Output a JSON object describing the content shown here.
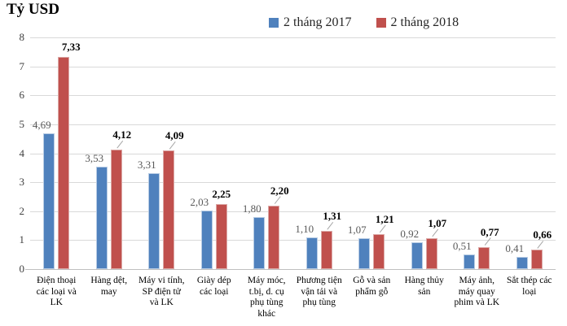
{
  "chart_data": {
    "type": "bar",
    "title": "Tỷ USD",
    "xlabel": "",
    "ylabel": "Tỷ USD",
    "ylim": [
      0,
      8
    ],
    "yticks": [
      0,
      1,
      2,
      3,
      4,
      5,
      6,
      7,
      8
    ],
    "grid": "horizontal",
    "legend_position": "top-center",
    "decimal_separator": ",",
    "categories": [
      "Điện thoại các loại và LK",
      "Hàng dệt, may",
      "Máy vi tính, SP điện tử và LK",
      "Giày dép các loại",
      "Máy móc, t.bị, d. cụ phụ tùng khác",
      "Phương tiện vận tải và phụ tùng",
      "Gỗ và sản phẩm gỗ",
      "Hàng thủy sản",
      "Máy ảnh, máy quay phim và LK",
      "Sắt thép các loại"
    ],
    "category_lines": [
      [
        "Điện thoại",
        "các loại và",
        "LK"
      ],
      [
        "Hàng dệt,",
        "may"
      ],
      [
        "Máy vi tính,",
        "SP điện tử",
        "và LK"
      ],
      [
        "Giày dép",
        "các loại"
      ],
      [
        "Máy móc,",
        "t.bị, d. cụ",
        "phụ tùng",
        "khác"
      ],
      [
        "Phương tiện",
        "vận tải và",
        "phụ tùng"
      ],
      [
        "Gỗ và sản",
        "phẩm gỗ"
      ],
      [
        "Hàng thủy",
        "sản"
      ],
      [
        "Máy ảnh,",
        "máy quay",
        "phim và LK"
      ],
      [
        "Sắt thép các",
        "loại"
      ]
    ],
    "series": [
      {
        "name": "2 tháng 2017",
        "color": "#4F81BD",
        "values": [
          4.69,
          3.53,
          3.31,
          2.03,
          1.8,
          1.1,
          1.07,
          0.92,
          0.51,
          0.41
        ],
        "labels": [
          "4,69",
          "3,53",
          "3,31",
          "2,03",
          "1,80",
          "1,10",
          "1,07",
          "0,92",
          "0,51",
          "0,41"
        ]
      },
      {
        "name": "2 tháng 2018",
        "color": "#C0504D",
        "values": [
          7.33,
          4.12,
          4.09,
          2.25,
          2.2,
          1.31,
          1.21,
          1.07,
          0.77,
          0.66
        ],
        "labels": [
          "7,33",
          "4,12",
          "4,09",
          "2,25",
          "2,20",
          "1,31",
          "1,21",
          "1,07",
          "0,77",
          "0,66"
        ],
        "label_leader": [
          false,
          true,
          true,
          false,
          true,
          true,
          true,
          true,
          true,
          true
        ]
      }
    ]
  }
}
